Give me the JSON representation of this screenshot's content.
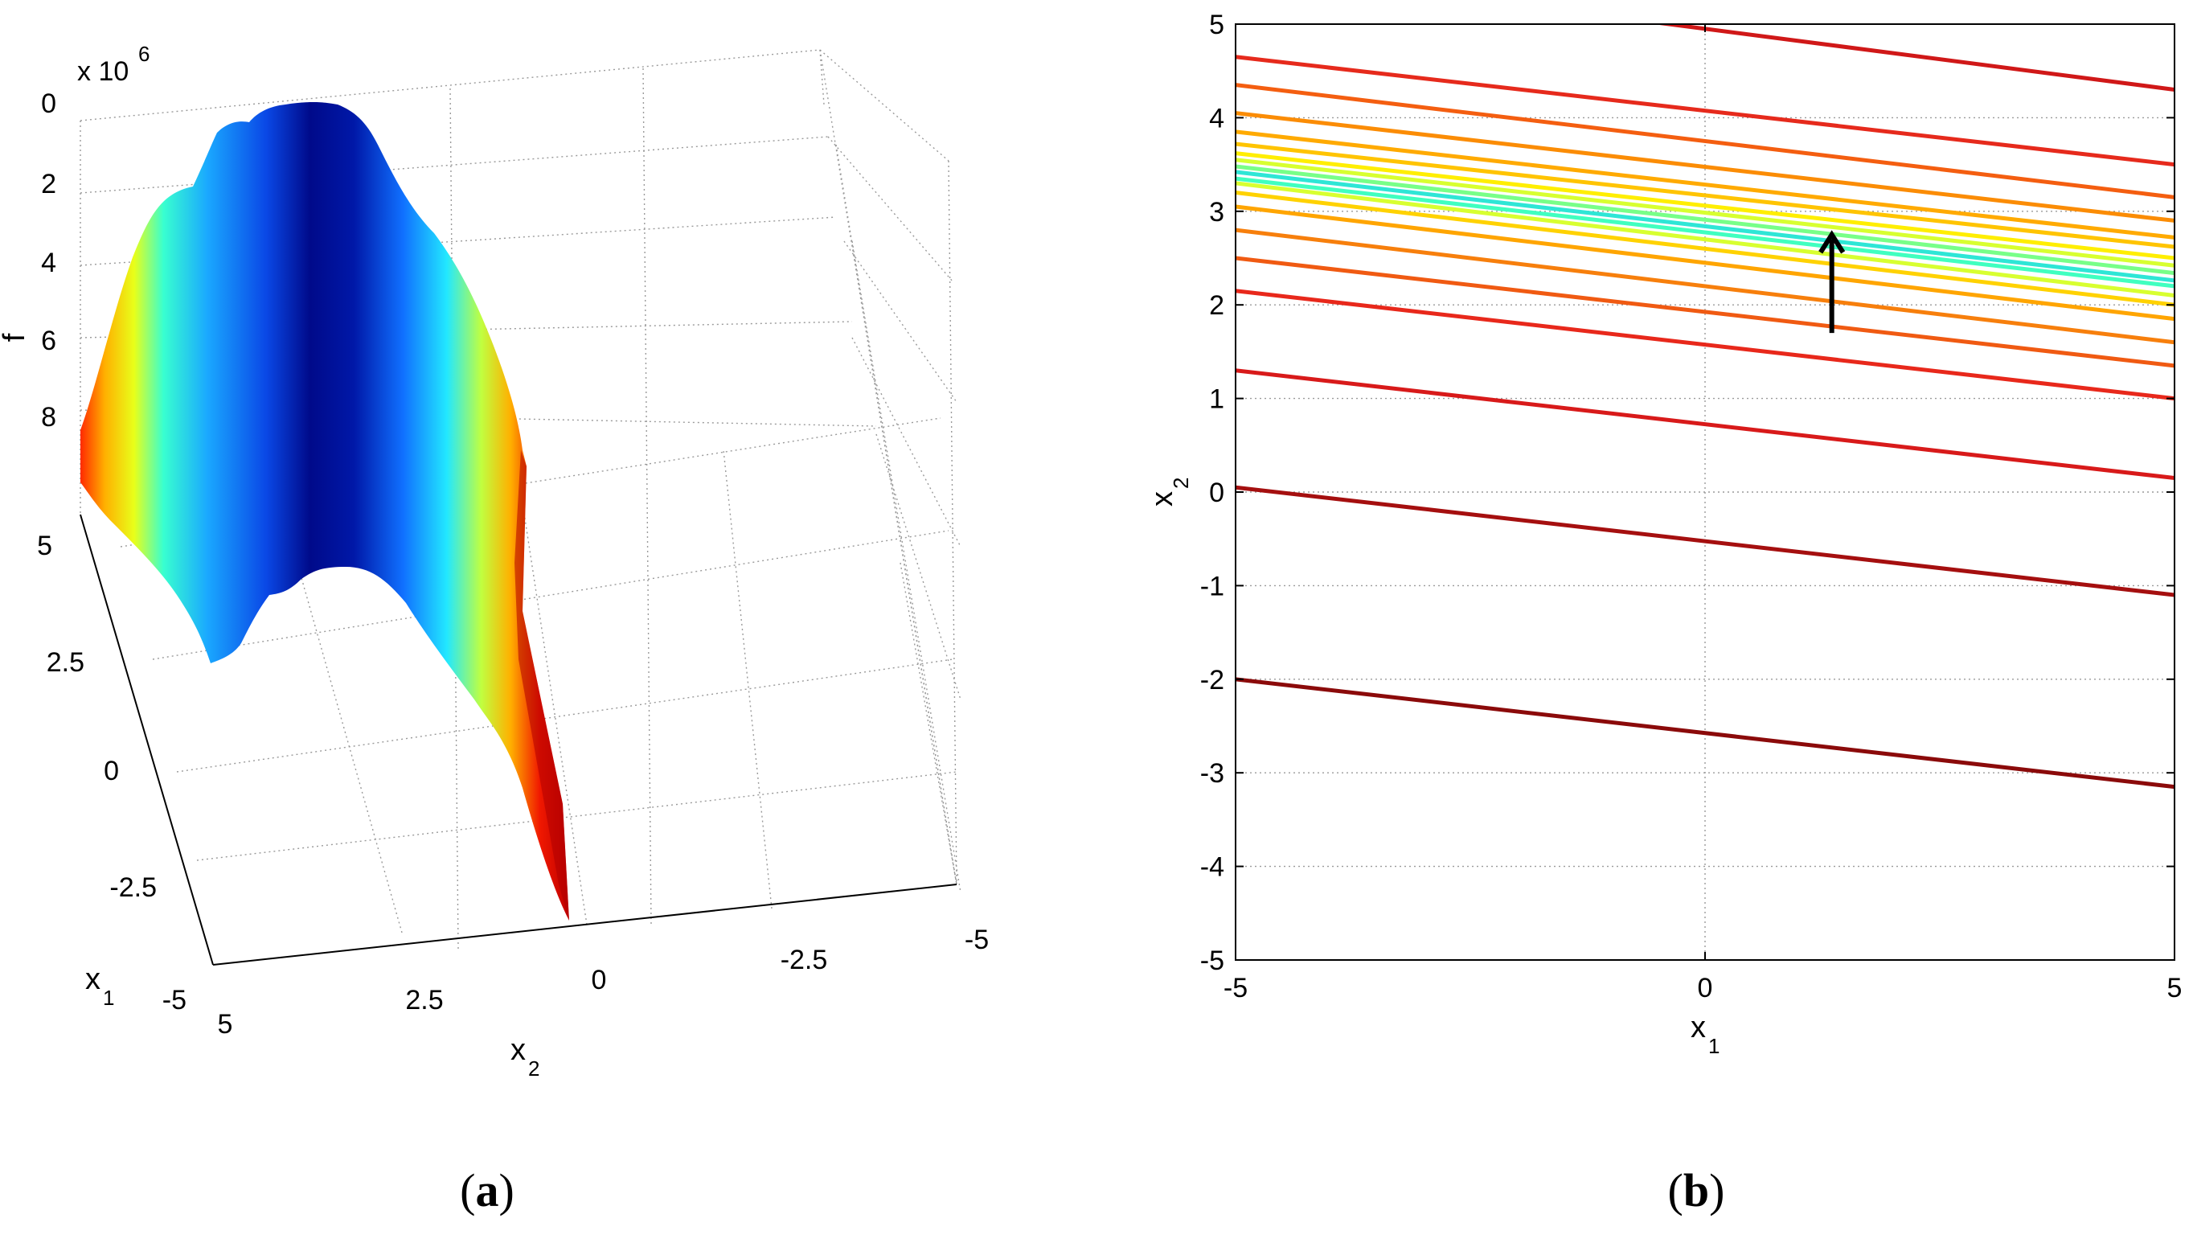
{
  "panels": [
    {
      "label_left": "(",
      "label_letter": "a",
      "label_right": ")"
    },
    {
      "label_left": "(",
      "label_letter": "b",
      "label_right": ")"
    }
  ],
  "chart_data": [
    {
      "type": "surface3d",
      "panel": "a",
      "zlabel": "f",
      "z_exponent_text": "x 10",
      "z_exponent_power": "6",
      "zticks": [
        "0",
        "2",
        "4",
        "6",
        "8"
      ],
      "zlim": [
        0,
        9
      ],
      "z_reversed": true,
      "x1_label": "x",
      "x1_label_sub": "1",
      "x1_ticks": [
        "5",
        "2.5",
        "0",
        "-2.5",
        "-5"
      ],
      "x2_label": "x",
      "x2_label_sub": "2",
      "x2_ticks": [
        "5",
        "2.5",
        "0",
        "-2.5",
        "-5"
      ],
      "colormap": [
        "#00008f",
        "#0040ff",
        "#00ffff",
        "#ffff00",
        "#ff8000",
        "#ff0000",
        "#800000"
      ],
      "grid": true
    },
    {
      "type": "contour",
      "panel": "b",
      "xlabel": "x",
      "xlabel_sub": "1",
      "ylabel": "x",
      "ylabel_sub": "2",
      "xlim": [
        -5,
        5
      ],
      "ylim": [
        -5,
        5
      ],
      "xticks": [
        "-5",
        "0",
        "5"
      ],
      "yticks": [
        "5",
        "4",
        "3",
        "2",
        "1",
        "0",
        "-1",
        "-2",
        "-3",
        "-4",
        "-5"
      ],
      "grid": true,
      "arrow": {
        "x": 1.35,
        "y_from": 1.7,
        "y_to": 2.75
      },
      "contour_lines": [
        {
          "y_at_minus5": -2.0,
          "y_at_5": -3.15,
          "color": "#8b0a0a"
        },
        {
          "y_at_minus5": 0.05,
          "y_at_5": -1.1,
          "color": "#a50f0f"
        },
        {
          "y_at_minus5": 1.3,
          "y_at_5": 0.15,
          "color": "#d81a1a"
        },
        {
          "y_at_minus5": 2.15,
          "y_at_5": 1.0,
          "color": "#e8281b"
        },
        {
          "y_at_minus5": 2.5,
          "y_at_5": 1.35,
          "color": "#f05a12"
        },
        {
          "y_at_minus5": 2.8,
          "y_at_5": 1.6,
          "color": "#f77f0c"
        },
        {
          "y_at_minus5": 3.05,
          "y_at_5": 1.85,
          "color": "#ffa500"
        },
        {
          "y_at_minus5": 3.2,
          "y_at_5": 2.0,
          "color": "#ffd200"
        },
        {
          "y_at_minus5": 3.3,
          "y_at_5": 2.1,
          "color": "#d8ff30"
        },
        {
          "y_at_minus5": 3.35,
          "y_at_5": 2.2,
          "color": "#40ffc0"
        },
        {
          "y_at_minus5": 3.42,
          "y_at_5": 2.26,
          "color": "#2ee6d6"
        },
        {
          "y_at_minus5": 3.48,
          "y_at_5": 2.34,
          "color": "#78ff88"
        },
        {
          "y_at_minus5": 3.55,
          "y_at_5": 2.42,
          "color": "#d8ff30"
        },
        {
          "y_at_minus5": 3.62,
          "y_at_5": 2.5,
          "color": "#ffee00"
        },
        {
          "y_at_minus5": 3.72,
          "y_at_5": 2.62,
          "color": "#ffc400"
        },
        {
          "y_at_minus5": 3.85,
          "y_at_5": 2.72,
          "color": "#ffaa00"
        },
        {
          "y_at_minus5": 4.05,
          "y_at_5": 2.9,
          "color": "#fb8c05"
        },
        {
          "y_at_minus5": 4.35,
          "y_at_5": 3.15,
          "color": "#f45e10"
        },
        {
          "y_at_minus5": 4.65,
          "y_at_5": 3.5,
          "color": "#e62a1c"
        },
        {
          "y_at_minus5": 5.6,
          "y_at_5": 4.3,
          "color": "#d01818"
        }
      ]
    }
  ]
}
